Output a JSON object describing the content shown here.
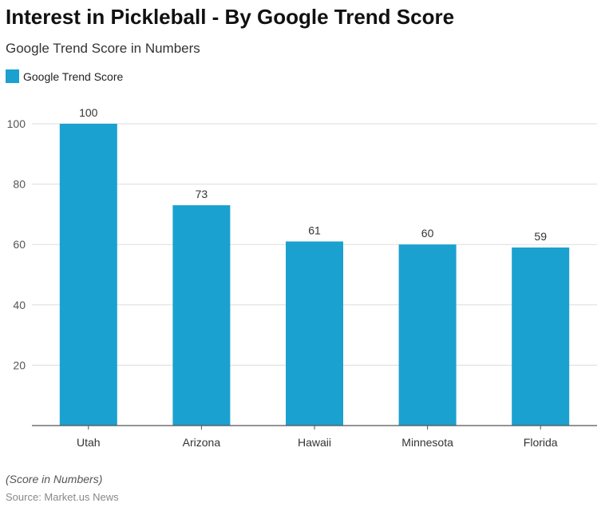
{
  "chart_data": {
    "type": "bar",
    "title": "Interest in Pickleball - By Google Trend Score",
    "subtitle": "Google Trend Score in Numbers",
    "categories": [
      "Utah",
      "Arizona",
      "Hawaii",
      "Minnesota",
      "Florida"
    ],
    "series": [
      {
        "name": "Google Trend Score",
        "values": [
          100,
          73,
          61,
          60,
          59
        ]
      }
    ],
    "ylim": [
      0,
      100
    ],
    "yticks": [
      20,
      40,
      60,
      80,
      100
    ],
    "grid": true,
    "legend": "top-left",
    "color": "#1ba1cf",
    "note": "(Score in Numbers)",
    "source": "Source: Market.us News"
  }
}
